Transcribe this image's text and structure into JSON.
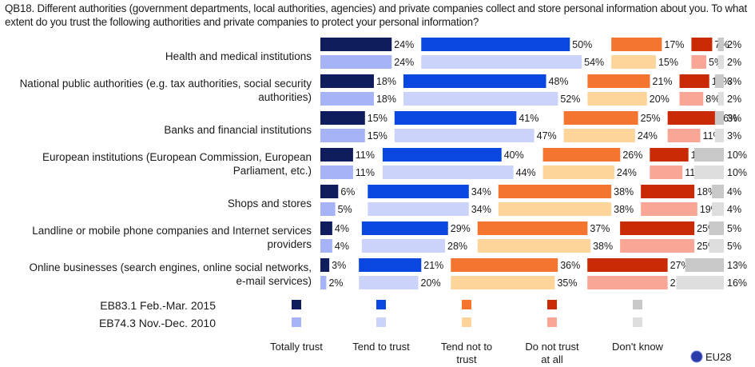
{
  "chart_data": {
    "type": "bar",
    "subtype": "stacked-horizontal-spaced",
    "title": "QB18. Different authorities (government departments, local authorities, agencies) and private companies collect and store personal information about you. To what extent do you trust the following authorities and private companies to protect your personal information?",
    "categories": [
      [
        "Health and medical institutions"
      ],
      [
        "National public authorities (e.g. tax authorities, social security",
        "authorities)"
      ],
      [
        "Banks and financial institutions"
      ],
      [
        "European institutions (European Commission, European",
        "Parliament, etc.)"
      ],
      [
        "Shops and stores"
      ],
      [
        "Landline or mobile phone companies and Internet services",
        "providers"
      ],
      [
        "Online businesses (search engines, online social networks,",
        "e-mail services)"
      ]
    ],
    "response_options": [
      "Totally trust",
      "Tend to trust",
      "Tend not to trust",
      "Do not trust at all",
      "Don't know"
    ],
    "response_option_lines": [
      [
        "Totally trust"
      ],
      [
        "Tend to trust"
      ],
      [
        "Tend not to",
        "trust"
      ],
      [
        "Do not trust",
        "at all"
      ],
      [
        "Don't know"
      ]
    ],
    "series": [
      {
        "name": "EB83.1 Feb.-Mar. 2015",
        "colors": [
          "#0f1d5e",
          "#0a47e0",
          "#f4752f",
          "#c92a04",
          "#c8c8c8"
        ],
        "values": [
          [
            24,
            50,
            17,
            7,
            2
          ],
          [
            18,
            48,
            21,
            10,
            3
          ],
          [
            15,
            41,
            25,
            16,
            3
          ],
          [
            11,
            40,
            26,
            13,
            10
          ],
          [
            6,
            34,
            38,
            18,
            4
          ],
          [
            4,
            29,
            37,
            25,
            5
          ],
          [
            3,
            21,
            36,
            27,
            13
          ]
        ]
      },
      {
        "name": "EB74.3 Nov.-Dec. 2010",
        "colors": [
          "#a6b3f7",
          "#ccd3fb",
          "#fdd59a",
          "#f9a696",
          "#dedede"
        ],
        "values": [
          [
            24,
            54,
            15,
            5,
            2
          ],
          [
            18,
            52,
            20,
            8,
            2
          ],
          [
            15,
            47,
            24,
            11,
            3
          ],
          [
            11,
            44,
            24,
            11,
            10
          ],
          [
            5,
            34,
            38,
            19,
            4
          ],
          [
            4,
            28,
            38,
            25,
            5
          ],
          [
            2,
            20,
            35,
            27,
            16
          ]
        ]
      }
    ],
    "value_suffix": "%",
    "region_label": "EU28",
    "region_icon": "eu-flag-icon"
  }
}
